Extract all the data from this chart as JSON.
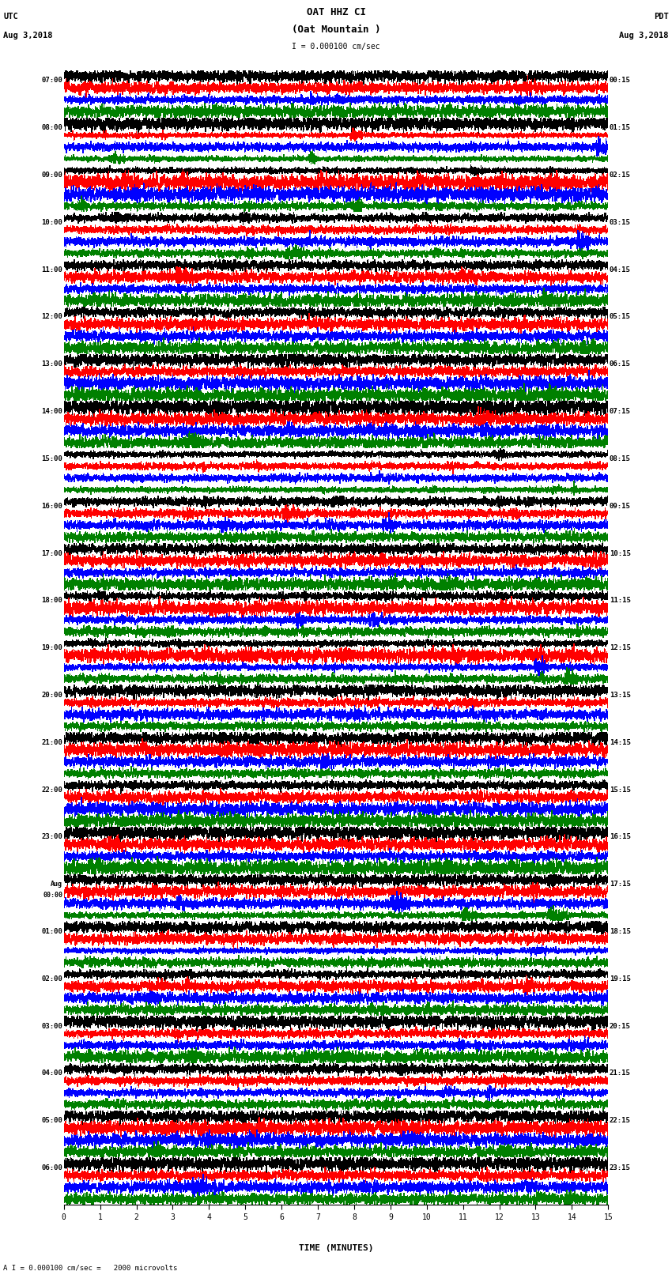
{
  "title_line1": "OAT HHZ CI",
  "title_line2": "(Oat Mountain )",
  "scale_label": "I = 0.000100 cm/sec",
  "utc_label": "UTC\nAug 3,2018",
  "pdt_label": "PDT\nAug 3,2018",
  "bottom_label": "A I = 0.000100 cm/sec =   2000 microvolts",
  "xlabel": "TIME (MINUTES)",
  "left_times": [
    "07:00",
    "08:00",
    "09:00",
    "10:00",
    "11:00",
    "12:00",
    "13:00",
    "14:00",
    "15:00",
    "16:00",
    "17:00",
    "18:00",
    "19:00",
    "20:00",
    "21:00",
    "22:00",
    "23:00",
    "Aug\n00:00",
    "01:00",
    "02:00",
    "03:00",
    "04:00",
    "05:00",
    "06:00"
  ],
  "right_times": [
    "00:15",
    "01:15",
    "02:15",
    "03:15",
    "04:15",
    "05:15",
    "06:15",
    "07:15",
    "08:15",
    "09:15",
    "10:15",
    "11:15",
    "12:15",
    "13:15",
    "14:15",
    "15:15",
    "16:15",
    "17:15",
    "18:15",
    "19:15",
    "20:15",
    "21:15",
    "22:15",
    "23:15"
  ],
  "n_rows": 24,
  "n_traces_per_row": 4,
  "colors": [
    "black",
    "red",
    "blue",
    "green"
  ],
  "fig_width": 8.5,
  "fig_height": 16.13,
  "dpi": 100
}
